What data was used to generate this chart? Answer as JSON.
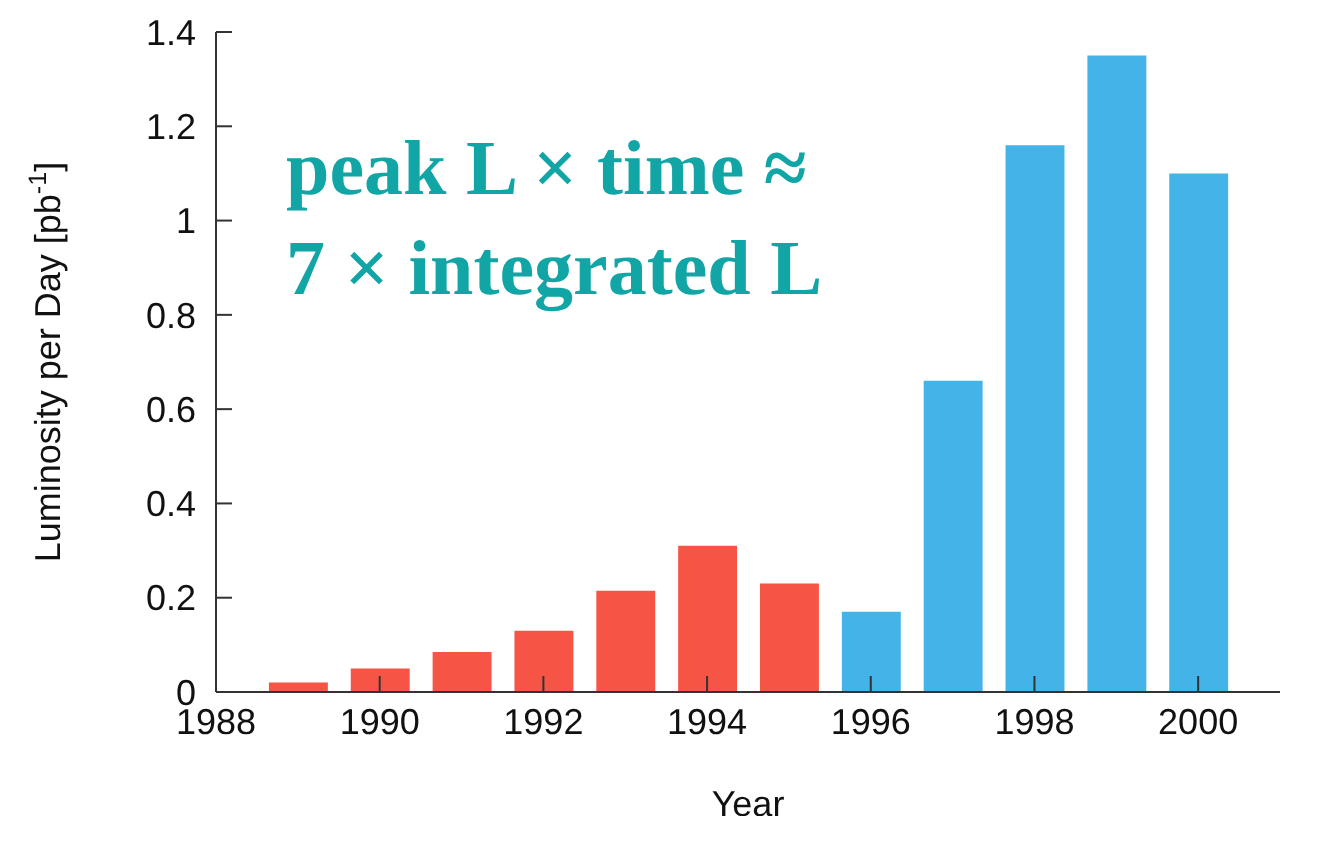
{
  "chart_data": {
    "type": "bar",
    "xlabel": "Year",
    "ylabel": "Luminosity per Day [pb$^{-1}$]",
    "annotations": [
      "peak L × time ≈",
      "7 × integrated L"
    ],
    "x": [
      1989,
      1990,
      1991,
      1992,
      1993,
      1994,
      1995,
      1996,
      1997,
      1998,
      1999,
      2000
    ],
    "values": [
      0.02,
      0.05,
      0.085,
      0.13,
      0.215,
      0.31,
      0.23,
      0.17,
      0.66,
      1.16,
      1.35,
      1.1
    ],
    "colors": [
      "#f65545",
      "#f65545",
      "#f65545",
      "#f65545",
      "#f65545",
      "#f65545",
      "#f65545",
      "#44b4e8",
      "#44b4e8",
      "#44b4e8",
      "#44b4e8",
      "#44b4e8"
    ],
    "xlim": [
      1988,
      2001
    ],
    "xticks": [
      1988,
      1990,
      1992,
      1994,
      1996,
      1998,
      2000
    ],
    "ylim": [
      0,
      1.4
    ],
    "yticks": [
      0,
      0.2,
      0.4,
      0.6,
      0.8,
      1,
      1.2,
      1.4
    ],
    "grid": false
  }
}
